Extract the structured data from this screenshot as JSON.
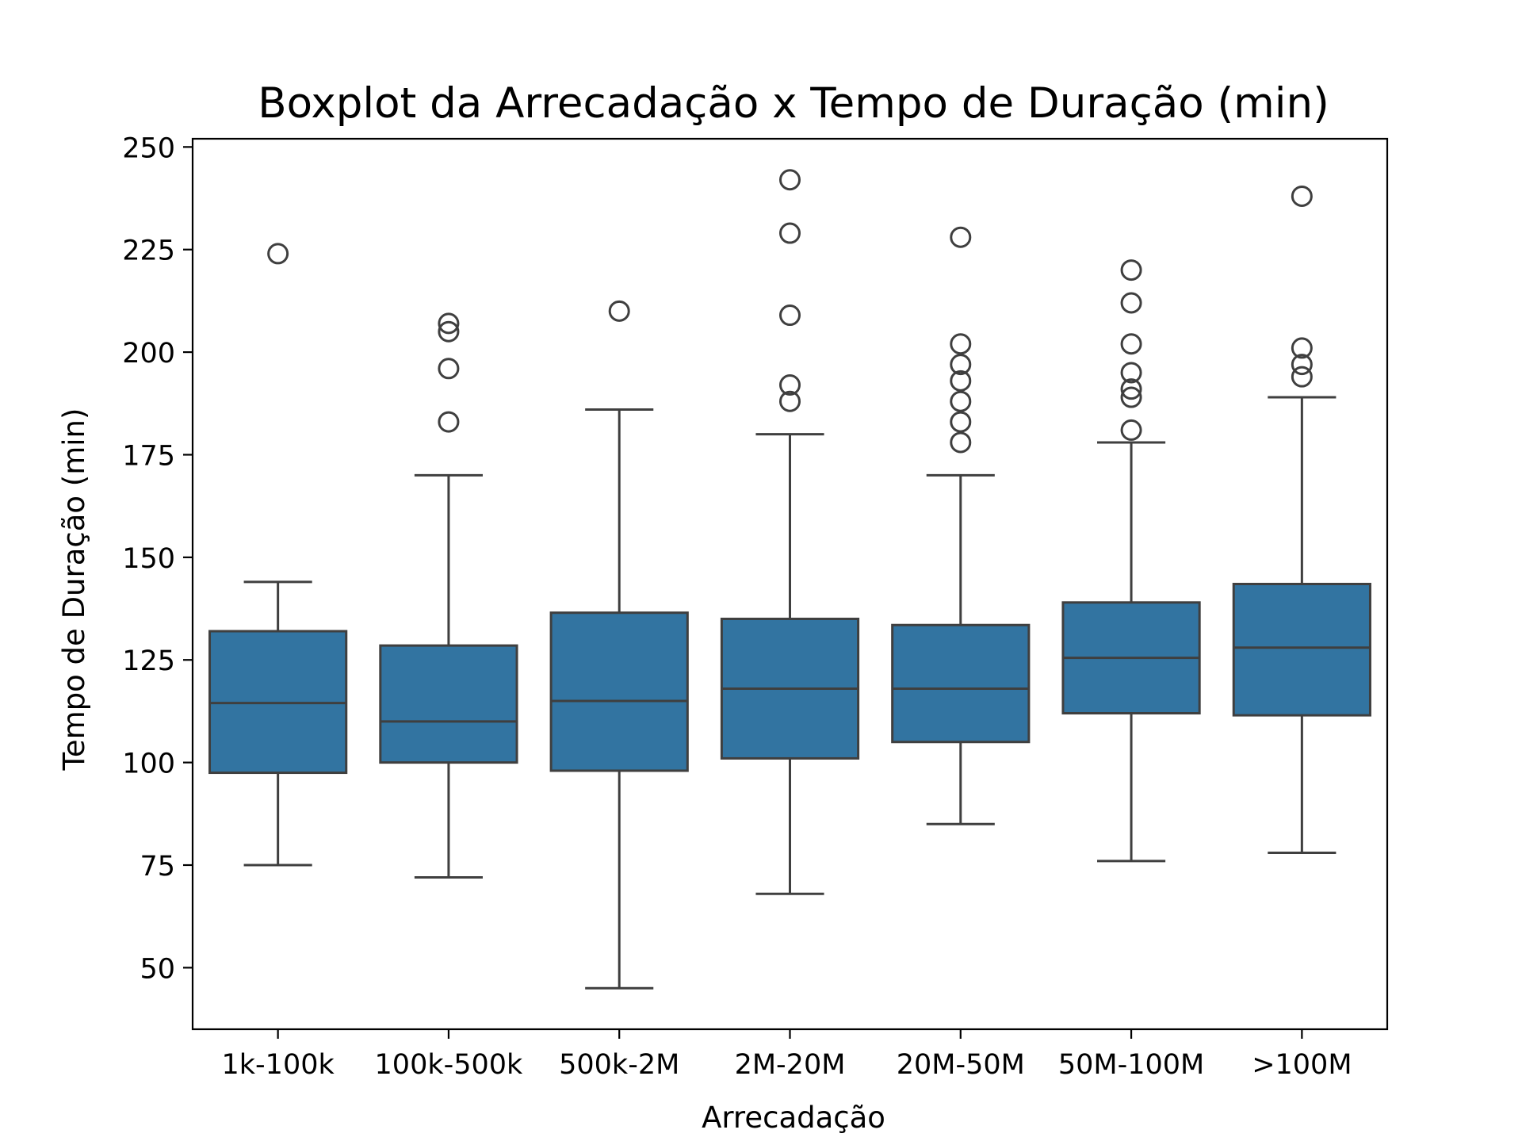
{
  "chart_data": {
    "type": "box",
    "title": "Boxplot da Arrecadação x Tempo de Duração (min)",
    "xlabel": "Arrecadação",
    "ylabel": "Tempo de Duração (min)",
    "ylim": [
      35,
      252
    ],
    "yticks": [
      50,
      75,
      100,
      125,
      150,
      175,
      200,
      225,
      250
    ],
    "grid": false,
    "box_color": "#3274a1",
    "line_color": "#3f3f3f",
    "categories": [
      "1k-100k",
      "100k-500k",
      "500k-2M",
      "2M-20M",
      "20M-50M",
      "50M-100M",
      ">100M"
    ],
    "boxes": [
      {
        "category": "1k-100k",
        "whisker_low": 75,
        "q1": 97.5,
        "median": 114.5,
        "q3": 132,
        "whisker_high": 144,
        "outliers": [
          224
        ]
      },
      {
        "category": "100k-500k",
        "whisker_low": 72,
        "q1": 100,
        "median": 110,
        "q3": 128.5,
        "whisker_high": 170,
        "outliers": [
          183,
          196,
          205,
          207
        ]
      },
      {
        "category": "500k-2M",
        "whisker_low": 45,
        "q1": 98,
        "median": 115,
        "q3": 136.5,
        "whisker_high": 186,
        "outliers": [
          210
        ]
      },
      {
        "category": "2M-20M",
        "whisker_low": 68,
        "q1": 101,
        "median": 118,
        "q3": 135,
        "whisker_high": 180,
        "outliers": [
          188,
          192,
          209,
          229,
          242
        ]
      },
      {
        "category": "20M-50M",
        "whisker_low": 85,
        "q1": 105,
        "median": 118,
        "q3": 133.5,
        "whisker_high": 170,
        "outliers": [
          178,
          183,
          188,
          193,
          197,
          202,
          228
        ]
      },
      {
        "category": "50M-100M",
        "whisker_low": 76,
        "q1": 112,
        "median": 125.5,
        "q3": 139,
        "whisker_high": 178,
        "outliers": [
          181,
          189,
          191,
          195,
          202,
          212,
          220
        ]
      },
      {
        "category": ">100M",
        "whisker_low": 78,
        "q1": 111.5,
        "median": 128,
        "q3": 143.5,
        "whisker_high": 189,
        "outliers": [
          194,
          197,
          201,
          238
        ]
      }
    ]
  }
}
